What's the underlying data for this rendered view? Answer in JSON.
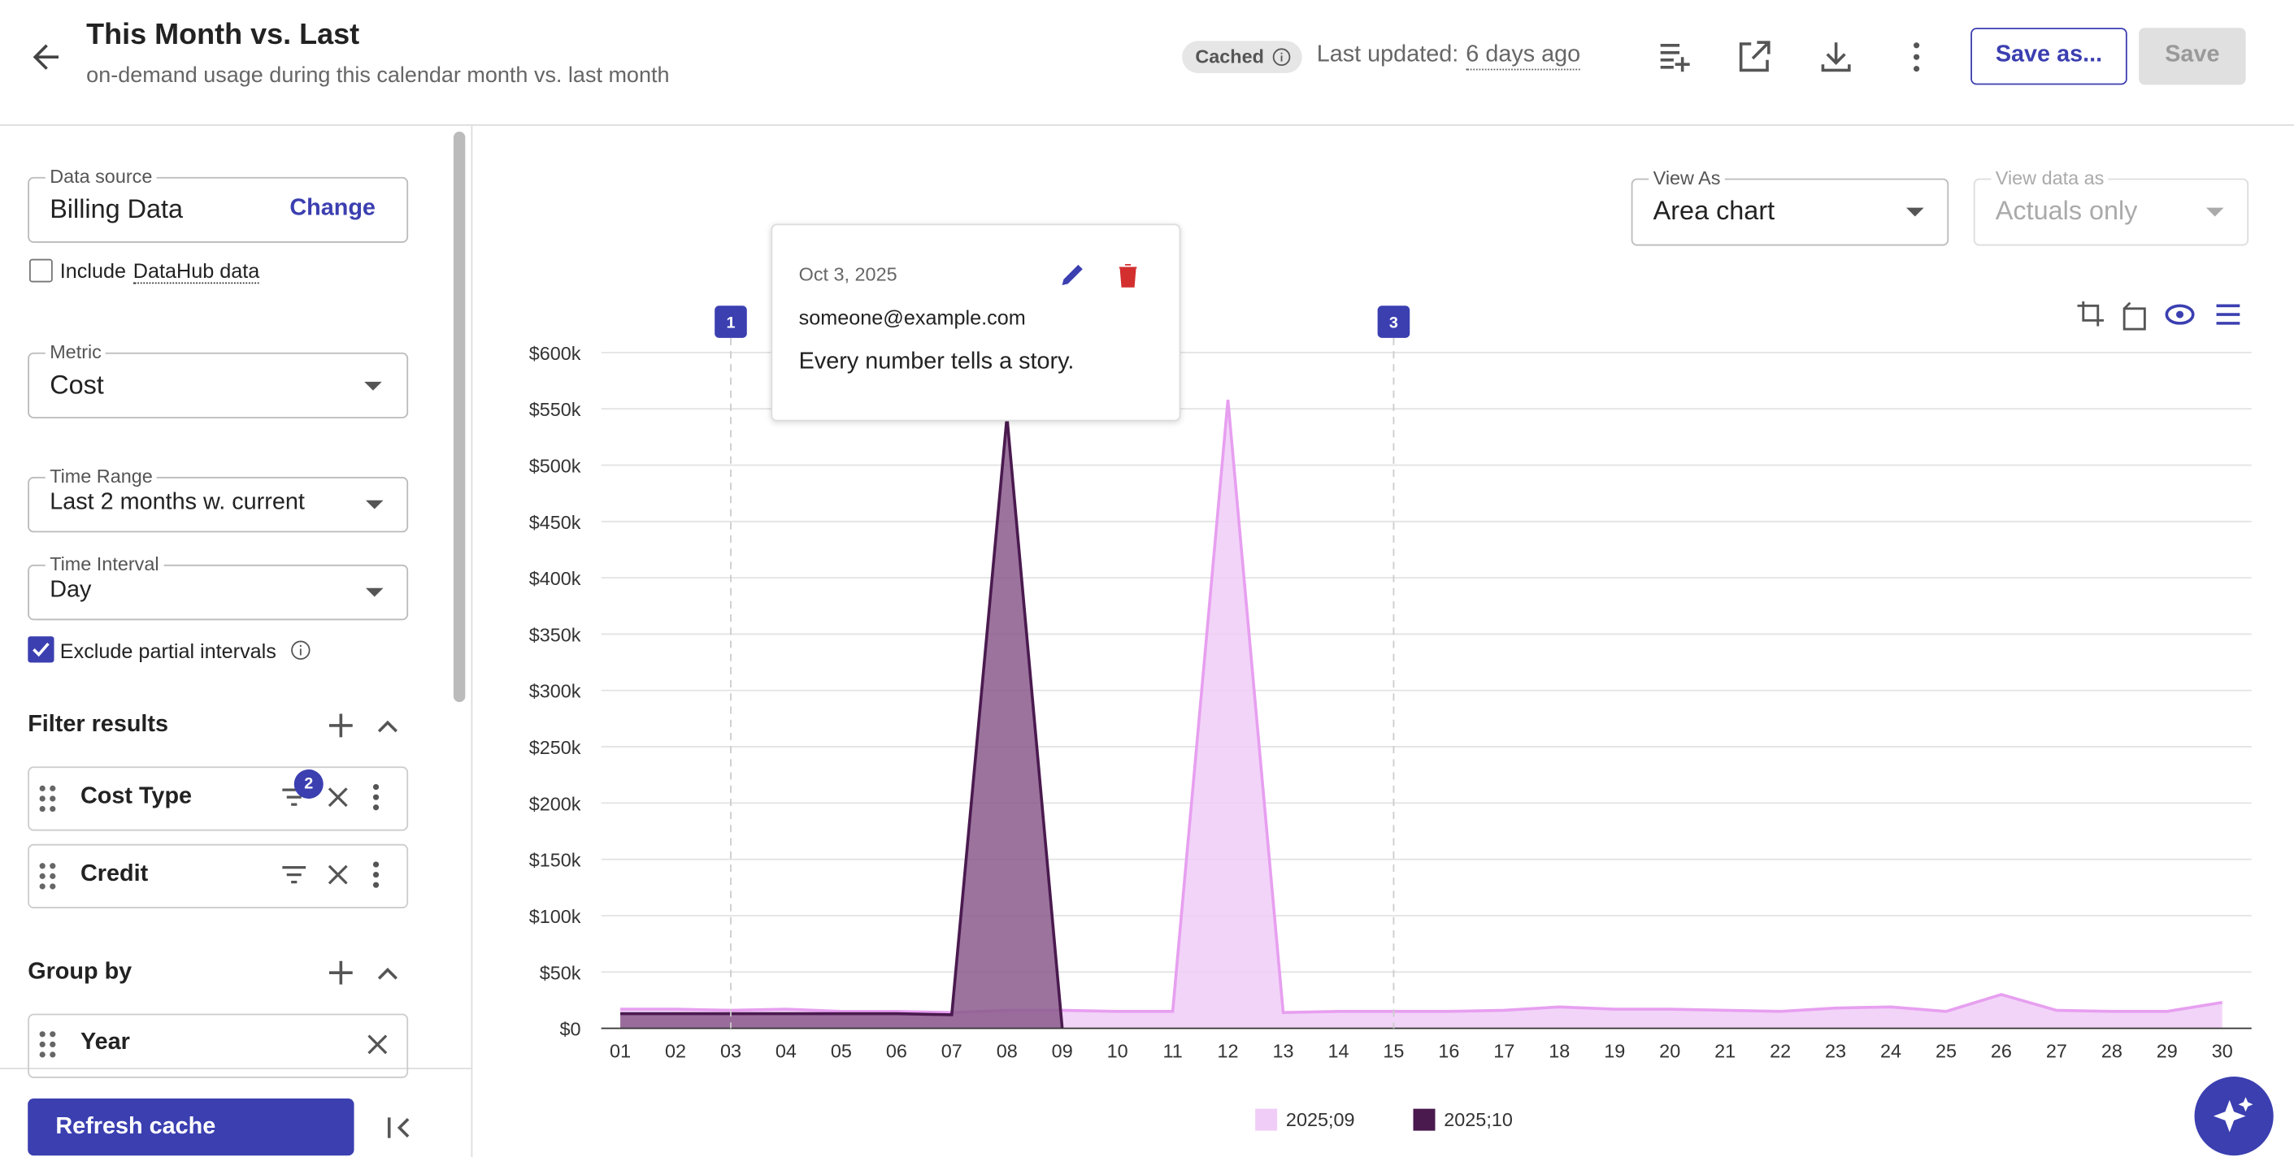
{
  "header": {
    "title": "This Month vs. Last",
    "subtitle": "on-demand usage during this calendar month vs. last month",
    "cached": "Cached",
    "last_updated_label": "Last updated:",
    "last_updated": "6 days ago",
    "save_as": "Save as...",
    "save": "Save"
  },
  "sidebar": {
    "data_source": {
      "label": "Data source",
      "value": "Billing Data",
      "action": "Change"
    },
    "include_datahub": {
      "prefix": "Include",
      "link": "DataHub data"
    },
    "metric": {
      "label": "Metric",
      "value": "Cost"
    },
    "time_range": {
      "label": "Time Range",
      "value": "Last 2 months w. current"
    },
    "time_interval": {
      "label": "Time Interval",
      "value": "Day"
    },
    "exclude_partial": "Exclude partial intervals",
    "filter_title": "Filter results",
    "filters": [
      {
        "name": "Cost Type",
        "badge": 2
      },
      {
        "name": "Credit"
      }
    ],
    "group_title": "Group by",
    "groups": [
      "Year"
    ],
    "refresh": "Refresh cache"
  },
  "controls": {
    "view_as": {
      "label": "View As",
      "value": "Area chart"
    },
    "view_data_as": {
      "label": "View data as",
      "value": "Actuals only"
    }
  },
  "annotation_popup": {
    "date": "Oct 3, 2025",
    "author": "someone@example.com",
    "text": "Every number tells a story."
  },
  "chart_data": {
    "type": "area",
    "categories": [
      "01",
      "02",
      "03",
      "04",
      "05",
      "06",
      "07",
      "08",
      "09",
      "10",
      "11",
      "12",
      "13",
      "14",
      "15",
      "16",
      "17",
      "18",
      "19",
      "20",
      "21",
      "22",
      "23",
      "24",
      "25",
      "26",
      "27",
      "28",
      "29",
      "30"
    ],
    "series": [
      {
        "name": "2025;09",
        "color": "#e79ff0",
        "fill": "#f0cdf7",
        "values": [
          17000,
          17000,
          16000,
          17000,
          15000,
          15000,
          14000,
          16000,
          16000,
          15000,
          15000,
          558000,
          14000,
          15000,
          15000,
          15000,
          16000,
          19000,
          17000,
          17000,
          16000,
          15000,
          18000,
          19000,
          15000,
          30000,
          16000,
          15000,
          15000,
          23000
        ]
      },
      {
        "name": "2025;10",
        "color": "#4a1a4f",
        "fill": "#8a5a8c",
        "values": [
          13000,
          13000,
          13000,
          13000,
          13000,
          13000,
          12000,
          543000,
          0,
          null,
          null,
          null,
          null,
          null,
          null,
          null,
          null,
          null,
          null,
          null,
          null,
          null,
          null,
          null,
          null,
          null,
          null,
          null,
          null,
          null
        ]
      }
    ],
    "ylim": [
      0,
      600000
    ],
    "yticks": [
      {
        "value": 0,
        "label": "$0"
      },
      {
        "value": 50000,
        "label": "$50k"
      },
      {
        "value": 100000,
        "label": "$100k"
      },
      {
        "value": 150000,
        "label": "$150k"
      },
      {
        "value": 200000,
        "label": "$200k"
      },
      {
        "value": 250000,
        "label": "$250k"
      },
      {
        "value": 300000,
        "label": "$300k"
      },
      {
        "value": 350000,
        "label": "$350k"
      },
      {
        "value": 400000,
        "label": "$400k"
      },
      {
        "value": 450000,
        "label": "$450k"
      },
      {
        "value": 500000,
        "label": "$500k"
      },
      {
        "value": 550000,
        "label": "$550k"
      },
      {
        "value": 600000,
        "label": "$600k"
      }
    ],
    "grid": true,
    "annotations": [
      {
        "label": "1",
        "x": "03"
      },
      {
        "label": "3",
        "x": "15"
      }
    ]
  }
}
